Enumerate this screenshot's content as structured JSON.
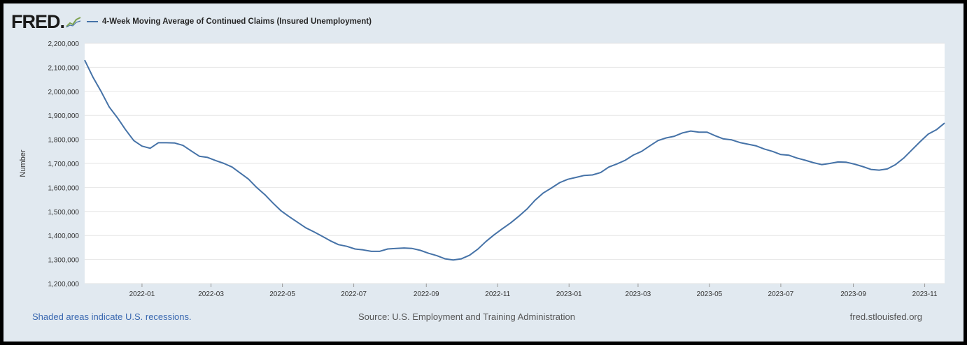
{
  "header": {
    "logo_text": "FRED",
    "series_title": "4-Week Moving Average of Continued Claims (Insured Unemployment)"
  },
  "footer": {
    "recession_note": "Shaded areas indicate U.S. recessions.",
    "source": "Source: U.S. Employment and Training Administration",
    "site": "fred.stlouisfed.org"
  },
  "colors": {
    "series_line": "#4572a7",
    "plot_background": "#ffffff",
    "frame_background": "#e1e9f0",
    "gridline": "#e6e6e6"
  },
  "chart_data": {
    "type": "line",
    "ylabel": "Number",
    "xlabel": "",
    "ylim": [
      1200000,
      2200000
    ],
    "xlim": [
      "2021-11-13",
      "2023-11-18"
    ],
    "y_ticks": [
      1200000,
      1300000,
      1400000,
      1500000,
      1600000,
      1700000,
      1800000,
      1900000,
      2000000,
      2100000,
      2200000
    ],
    "y_tick_labels": [
      "1,200,000",
      "1,300,000",
      "1,400,000",
      "1,500,000",
      "1,600,000",
      "1,700,000",
      "1,800,000",
      "1,900,000",
      "2,000,000",
      "2,100,000",
      "2,200,000"
    ],
    "x_ticks": [
      "2022-01-01",
      "2022-03-01",
      "2022-05-01",
      "2022-07-01",
      "2022-09-01",
      "2022-11-01",
      "2023-01-01",
      "2023-03-01",
      "2023-05-01",
      "2023-07-01",
      "2023-09-01",
      "2023-11-01"
    ],
    "x_tick_labels": [
      "2022-01",
      "2022-03",
      "2022-05",
      "2022-07",
      "2022-09",
      "2022-11",
      "2023-01",
      "2023-03",
      "2023-05",
      "2023-07",
      "2023-09",
      "2023-11"
    ],
    "grid": true,
    "legend": "top-left",
    "series": [
      {
        "name": "4-Week Moving Average of Continued Claims (Insured Unemployment)",
        "x": [
          "2021-11-13",
          "2021-11-20",
          "2021-11-27",
          "2021-12-04",
          "2021-12-11",
          "2021-12-18",
          "2021-12-25",
          "2022-01-01",
          "2022-01-08",
          "2022-01-15",
          "2022-01-22",
          "2022-01-29",
          "2022-02-05",
          "2022-02-12",
          "2022-02-19",
          "2022-02-26",
          "2022-03-05",
          "2022-03-12",
          "2022-03-19",
          "2022-03-26",
          "2022-04-02",
          "2022-04-09",
          "2022-04-16",
          "2022-04-23",
          "2022-04-30",
          "2022-05-07",
          "2022-05-14",
          "2022-05-21",
          "2022-05-28",
          "2022-06-04",
          "2022-06-11",
          "2022-06-18",
          "2022-06-25",
          "2022-07-02",
          "2022-07-09",
          "2022-07-16",
          "2022-07-23",
          "2022-07-30",
          "2022-08-06",
          "2022-08-13",
          "2022-08-20",
          "2022-08-27",
          "2022-09-03",
          "2022-09-10",
          "2022-09-17",
          "2022-09-24",
          "2022-10-01",
          "2022-10-08",
          "2022-10-15",
          "2022-10-22",
          "2022-10-29",
          "2022-11-05",
          "2022-11-12",
          "2022-11-19",
          "2022-11-26",
          "2022-12-03",
          "2022-12-10",
          "2022-12-17",
          "2022-12-24",
          "2022-12-31",
          "2023-01-07",
          "2023-01-14",
          "2023-01-21",
          "2023-01-28",
          "2023-02-04",
          "2023-02-11",
          "2023-02-18",
          "2023-02-25",
          "2023-03-04",
          "2023-03-11",
          "2023-03-18",
          "2023-03-25",
          "2023-04-01",
          "2023-04-08",
          "2023-04-15",
          "2023-04-22",
          "2023-04-29",
          "2023-05-06",
          "2023-05-13",
          "2023-05-20",
          "2023-05-27",
          "2023-06-03",
          "2023-06-10",
          "2023-06-17",
          "2023-06-24",
          "2023-07-01",
          "2023-07-08",
          "2023-07-15",
          "2023-07-22",
          "2023-07-29",
          "2023-08-05",
          "2023-08-12",
          "2023-08-19",
          "2023-08-26",
          "2023-09-02",
          "2023-09-09",
          "2023-09-16",
          "2023-09-23",
          "2023-09-30",
          "2023-10-07",
          "2023-10-14",
          "2023-10-21",
          "2023-10-28",
          "2023-11-04",
          "2023-11-11",
          "2023-11-18"
        ],
        "y": [
          2130000,
          2060000,
          2000000,
          1935000,
          1890000,
          1840000,
          1795000,
          1772000,
          1763000,
          1786000,
          1786000,
          1785000,
          1775000,
          1752000,
          1730000,
          1725000,
          1712000,
          1700000,
          1685000,
          1660000,
          1635000,
          1600000,
          1570000,
          1535000,
          1502000,
          1478000,
          1455000,
          1432000,
          1415000,
          1397000,
          1378000,
          1362000,
          1355000,
          1344000,
          1340000,
          1334000,
          1334000,
          1344000,
          1346000,
          1348000,
          1346000,
          1338000,
          1326000,
          1316000,
          1303000,
          1298000,
          1303000,
          1318000,
          1343000,
          1375000,
          1403000,
          1428000,
          1452000,
          1480000,
          1510000,
          1547000,
          1577000,
          1598000,
          1620000,
          1634000,
          1642000,
          1650000,
          1652000,
          1662000,
          1685000,
          1698000,
          1713000,
          1735000,
          1750000,
          1773000,
          1795000,
          1806000,
          1813000,
          1827000,
          1835000,
          1830000,
          1830000,
          1815000,
          1802000,
          1798000,
          1787000,
          1780000,
          1773000,
          1760000,
          1750000,
          1737000,
          1734000,
          1722000,
          1713000,
          1703000,
          1695000,
          1700000,
          1706000,
          1705000,
          1697000,
          1687000,
          1675000,
          1672000,
          1677000,
          1695000,
          1722000,
          1756000,
          1790000,
          1822000,
          1840000,
          1868000
        ]
      }
    ]
  }
}
